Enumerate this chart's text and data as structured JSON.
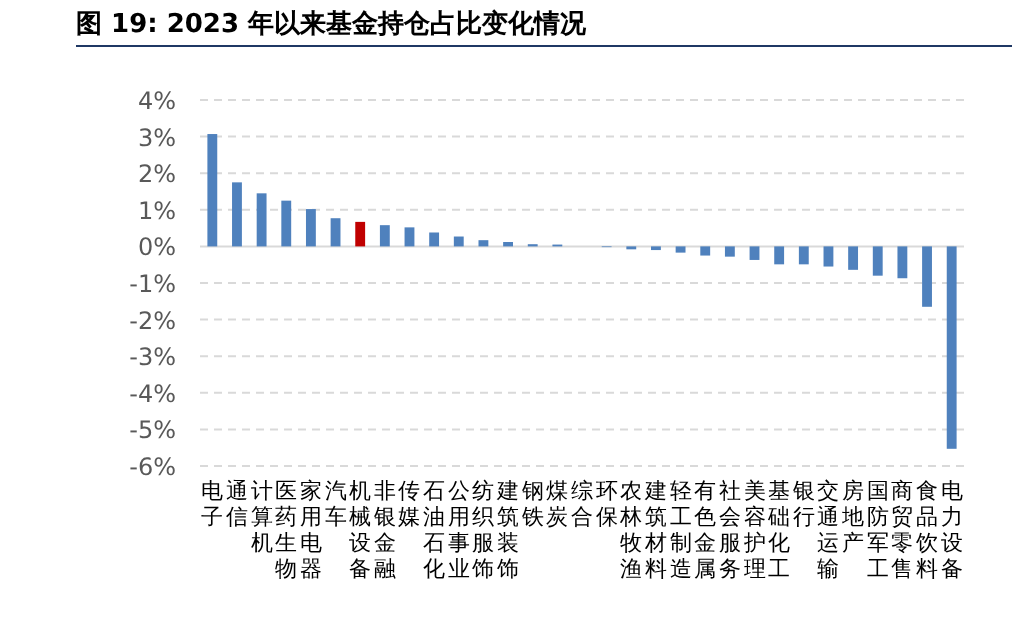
{
  "chart_data": {
    "type": "bar",
    "title": "图 19:  2023 年以来基金持仓占比变化情况",
    "categories": [
      "电子",
      "通信",
      "计算机",
      "医药生物",
      "家用电器",
      "汽车",
      "机械设备",
      "非银金融",
      "传媒",
      "石油石化",
      "公用事业",
      "纺织服饰",
      "建筑装饰",
      "钢铁",
      "煤炭",
      "综合",
      "环保",
      "农林牧渔",
      "建筑材料",
      "轻工制造",
      "有色金属",
      "社会服务",
      "美容护理",
      "基础化工",
      "银行",
      "交通运输",
      "房地产",
      "国防军工",
      "商贸零售",
      "食品饮料",
      "电力设备"
    ],
    "values": [
      3.07,
      1.75,
      1.45,
      1.25,
      1.02,
      0.77,
      0.67,
      0.58,
      0.52,
      0.38,
      0.27,
      0.17,
      0.12,
      0.06,
      0.05,
      null,
      -0.02,
      -0.08,
      -0.1,
      -0.17,
      -0.25,
      -0.28,
      -0.37,
      -0.49,
      -0.49,
      -0.55,
      -0.64,
      -0.8,
      -0.87,
      -1.65,
      -5.53
    ],
    "colors": [
      "#4f81bd",
      "#4f81bd",
      "#4f81bd",
      "#4f81bd",
      "#4f81bd",
      "#4f81bd",
      "#c00000",
      "#4f81bd",
      "#4f81bd",
      "#4f81bd",
      "#4f81bd",
      "#4f81bd",
      "#4f81bd",
      "#4f81bd",
      "#4f81bd",
      null,
      "#4f81bd",
      "#4f81bd",
      "#4f81bd",
      "#4f81bd",
      "#4f81bd",
      "#4f81bd",
      "#4f81bd",
      "#4f81bd",
      "#4f81bd",
      "#4f81bd",
      "#4f81bd",
      "#4f81bd",
      "#4f81bd",
      "#4f81bd",
      "#4f81bd"
    ],
    "ylim": [
      -6,
      4
    ],
    "yticks": [
      {
        "value": -6,
        "label": "-6%"
      },
      {
        "value": -5,
        "label": "-5%"
      },
      {
        "value": -4,
        "label": "-4%"
      },
      {
        "value": -3,
        "label": "-3%"
      },
      {
        "value": -2,
        "label": "-2%"
      },
      {
        "value": -1,
        "label": "-1%"
      },
      {
        "value": 0,
        "label": "0%"
      },
      {
        "value": 1,
        "label": "1%"
      },
      {
        "value": 2,
        "label": "2%"
      },
      {
        "value": 3,
        "label": "3%"
      },
      {
        "value": 4,
        "label": "4%"
      }
    ],
    "grid": "y"
  }
}
